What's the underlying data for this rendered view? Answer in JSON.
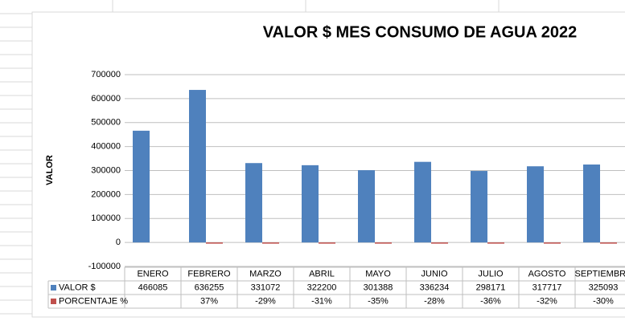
{
  "chart_data": {
    "type": "bar",
    "title": "VALOR $ MES CONSUMO DE AGUA 2022",
    "y_label": "VALOR",
    "categories": [
      "ENERO",
      "FEBRERO",
      "MARZO",
      "ABRIL",
      "MAYO",
      "JUNIO",
      "JULIO",
      "AGOSTO",
      "SEPTIEMBRE"
    ],
    "series": [
      {
        "name": "VALOR $",
        "color": "#4f81bd",
        "values": [
          466085,
          636255,
          331072,
          322200,
          301388,
          336234,
          298171,
          317717,
          325093
        ]
      },
      {
        "name": "PORCENTAJE %",
        "color": "#c0504d",
        "values": [
          null,
          0.37,
          -0.29,
          -0.31,
          -0.35,
          -0.28,
          -0.36,
          -0.32,
          -0.3
        ],
        "value_labels": [
          null,
          "37%",
          "-29%",
          "-31%",
          "-35%",
          "-28%",
          "-36%",
          "-32%",
          "-30%"
        ]
      }
    ],
    "ylim": [
      -100000,
      700000
    ],
    "yticks": [
      -100000,
      0,
      100000,
      200000,
      300000,
      400000,
      500000,
      600000,
      700000
    ],
    "grid": true
  }
}
